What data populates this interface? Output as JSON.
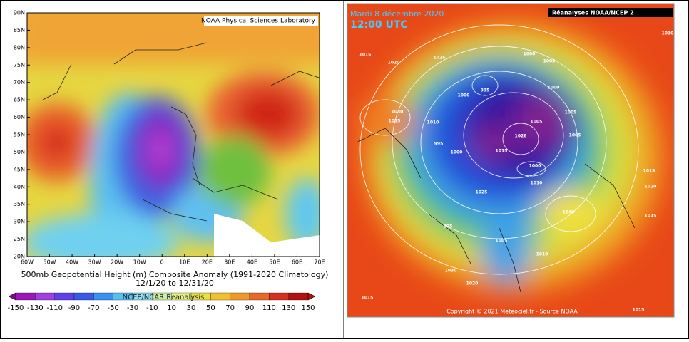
{
  "left_map": {
    "credit": "NOAA Physical Sciences Laboratory",
    "lat_labels": [
      "90N",
      "85N",
      "80N",
      "75N",
      "70N",
      "65N",
      "60N",
      "55N",
      "50N",
      "45N",
      "40N",
      "35N",
      "30N",
      "25N",
      "20N"
    ],
    "lon_labels": [
      "60W",
      "50W",
      "40W",
      "30W",
      "20W",
      "10W",
      "0",
      "10E",
      "20E",
      "30E",
      "40E",
      "50E",
      "60E",
      "70E"
    ],
    "caption": "500mb Geopotential Height (m) Composite Anomaly (1991-2020 Climatology)",
    "dates": "12/1/20  to 12/31/20",
    "colorbar_title": "NCEP/NCAR Reanalysis",
    "colorbar_labels": [
      -150,
      -130,
      -110,
      -90,
      -70,
      -50,
      -30,
      -10,
      10,
      30,
      50,
      70,
      90,
      110,
      130,
      150
    ]
  },
  "right_map": {
    "date": "Mardi 8 décembre 2020",
    "time": "12:00 UTC",
    "source": "Réanalyses NOAA/NCEP 2",
    "copyright": "Copyright © 2021 Meteociel.fr - Source NOAA",
    "isobar_labels": [
      "1015",
      "1020",
      "1025",
      "1000",
      "995",
      "1000",
      "1005",
      "1000",
      "1005",
      "1005",
      "1026",
      "1015",
      "1005",
      "1000",
      "1010",
      "1025",
      "1030",
      "1035",
      "1010",
      "995",
      "1000",
      "1015",
      "1020",
      "1015",
      "1040",
      "1030",
      "1015",
      "1015",
      "1010",
      "1005",
      "1010",
      "1020",
      "995"
    ]
  }
}
